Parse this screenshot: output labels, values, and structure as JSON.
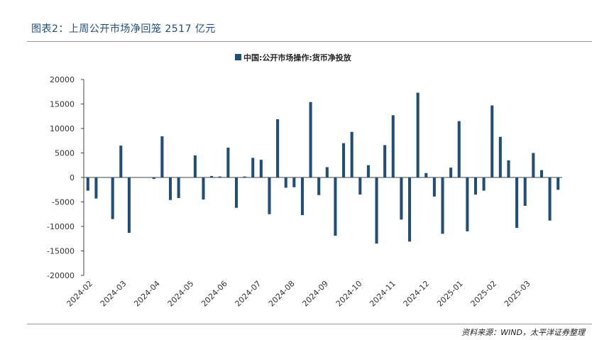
{
  "figure_title": "图表2：上周公开市场净回笼 2517 亿元",
  "source_note": "资料来源：WIND，太平洋证券整理",
  "colors": {
    "bar": "#1f4e79",
    "axis": "#444444",
    "title": "#1f4e79"
  },
  "chart_data": {
    "type": "bar",
    "title": "",
    "xlabel": "",
    "ylabel": "",
    "ylim": [
      -20000,
      20000
    ],
    "yticks": [
      20000,
      15000,
      10000,
      5000,
      0,
      -5000,
      -10000,
      -15000,
      -20000
    ],
    "grid": false,
    "legend_position": "top-center",
    "x_tick_labels": [
      "2024-02",
      "2024-03",
      "2024-04",
      "2024-05",
      "2024-06",
      "2024-07",
      "2024-08",
      "2024-09",
      "2024-10",
      "2024-11",
      "2024-12",
      "2025-01",
      "2025-02",
      "2025-03"
    ],
    "series": [
      {
        "name": "中国:公开市场操作:货币净投放",
        "values": [
          -2700,
          -4300,
          0,
          -8500,
          6500,
          -11300,
          0,
          0,
          -300,
          8400,
          -4600,
          -4200,
          0,
          4500,
          -4500,
          300,
          200,
          6100,
          -6200,
          200,
          4000,
          3600,
          -7500,
          11900,
          -2100,
          -2000,
          -7700,
          15400,
          -3600,
          2100,
          -11900,
          7000,
          9300,
          -3500,
          2500,
          -13500,
          6600,
          12700,
          -8600,
          -13100,
          17300,
          900,
          -3900,
          -11500,
          2000,
          11500,
          -11000,
          -3500,
          -2700,
          14700,
          8300,
          3500,
          -10300,
          -5800,
          5000,
          1500,
          -8800,
          -2517
        ]
      }
    ]
  }
}
